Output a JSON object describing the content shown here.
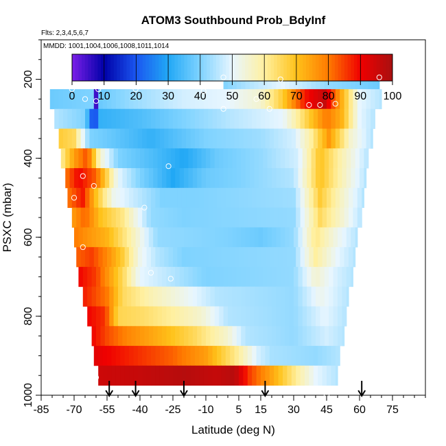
{
  "chart_data": {
    "type": "heatmap",
    "title": "ATOM3 Southbound Prob_BdyInf",
    "subtitle_flights": "Flts: 2,3,4,5,6,7",
    "subtitle_dates": "MMDD: 1001,1004,1006,1008,1011,1014",
    "xlabel": "Latitude (deg N)",
    "ylabel": "PSXC (mbar)",
    "xlim": [
      -85,
      90
    ],
    "ylim": [
      1000,
      100
    ],
    "x_ticks": [
      "-85",
      "-70",
      "-55",
      "-40",
      "-25",
      "-10",
      "5",
      "15",
      "30",
      "45",
      "60",
      "75"
    ],
    "x_tick_values": [
      -85,
      -70,
      -55,
      -40,
      -25,
      -10,
      5,
      15,
      30,
      45,
      60,
      75
    ],
    "y_ticks": [
      "200",
      "400",
      "600",
      "800",
      "1000"
    ],
    "y_tick_values": [
      200,
      400,
      600,
      800,
      1000
    ],
    "colorbar": {
      "ticks": [
        "0",
        "10",
        "20",
        "30",
        "40",
        "50",
        "60",
        "70",
        "80",
        "90",
        "100"
      ],
      "range": [
        0,
        100
      ],
      "colors": [
        "#7b1fe8",
        "#0000a8",
        "#1a56f0",
        "#21a8f5",
        "#7fd3ff",
        "#e8f6ff",
        "#fff0a0",
        "#ffc21a",
        "#ff7a00",
        "#f00000",
        "#a81010"
      ]
    },
    "layers": [
      {
        "p": 200,
        "lat_min": -2,
        "lat_max": 69,
        "segments": [
          [
            -2,
            40
          ],
          [
            10,
            45
          ],
          [
            25,
            50
          ],
          [
            45,
            42
          ],
          [
            69,
            38
          ]
        ]
      },
      {
        "p": 250,
        "lat_min": -81,
        "lat_max": 70,
        "segments": [
          [
            -81,
            38
          ],
          [
            -62,
            40
          ],
          [
            -60,
            5
          ],
          [
            -58,
            38
          ],
          [
            -45,
            42
          ],
          [
            -20,
            48
          ],
          [
            0,
            50
          ],
          [
            15,
            55
          ],
          [
            25,
            68
          ],
          [
            35,
            88
          ],
          [
            44,
            96
          ],
          [
            50,
            78
          ],
          [
            60,
            50
          ],
          [
            70,
            45
          ]
        ]
      },
      {
        "p": 300,
        "lat_min": -79,
        "lat_max": 67,
        "segments": [
          [
            -79,
            45
          ],
          [
            -65,
            40
          ],
          [
            -61,
            15
          ],
          [
            -58,
            32
          ],
          [
            -40,
            35
          ],
          [
            -20,
            40
          ],
          [
            0,
            45
          ],
          [
            25,
            50
          ],
          [
            35,
            65
          ],
          [
            45,
            80
          ],
          [
            52,
            72
          ],
          [
            60,
            50
          ],
          [
            67,
            45
          ]
        ]
      },
      {
        "p": 350,
        "lat_min": -77,
        "lat_max": 66,
        "segments": [
          [
            -77,
            68
          ],
          [
            -70,
            65
          ],
          [
            -63,
            40
          ],
          [
            -55,
            38
          ],
          [
            -35,
            32
          ],
          [
            -10,
            40
          ],
          [
            15,
            43
          ],
          [
            30,
            48
          ],
          [
            38,
            60
          ],
          [
            46,
            76
          ],
          [
            56,
            55
          ],
          [
            66,
            45
          ]
        ]
      },
      {
        "p": 400,
        "lat_min": -76,
        "lat_max": 64,
        "segments": [
          [
            -76,
            60
          ],
          [
            -70,
            75
          ],
          [
            -64,
            84
          ],
          [
            -58,
            55
          ],
          [
            -50,
            40
          ],
          [
            -35,
            35
          ],
          [
            -20,
            30
          ],
          [
            -5,
            38
          ],
          [
            15,
            42
          ],
          [
            32,
            48
          ],
          [
            42,
            70
          ],
          [
            52,
            58
          ],
          [
            64,
            45
          ]
        ]
      },
      {
        "p": 450,
        "lat_min": -74,
        "lat_max": 63,
        "segments": [
          [
            -74,
            80
          ],
          [
            -68,
            90
          ],
          [
            -60,
            82
          ],
          [
            -50,
            50
          ],
          [
            -40,
            40
          ],
          [
            -25,
            30
          ],
          [
            -10,
            38
          ],
          [
            5,
            40
          ],
          [
            30,
            45
          ],
          [
            42,
            70
          ],
          [
            50,
            60
          ],
          [
            63,
            45
          ]
        ]
      },
      {
        "p": 500,
        "lat_min": -73,
        "lat_max": 62,
        "segments": [
          [
            -73,
            80
          ],
          [
            -66,
            88
          ],
          [
            -60,
            70
          ],
          [
            -52,
            52
          ],
          [
            -45,
            48
          ],
          [
            -30,
            40
          ],
          [
            -15,
            40
          ],
          [
            30,
            43
          ],
          [
            42,
            68
          ],
          [
            50,
            58
          ],
          [
            62,
            45
          ]
        ]
      },
      {
        "p": 550,
        "lat_min": -71,
        "lat_max": 61,
        "segments": [
          [
            -71,
            75
          ],
          [
            -65,
            82
          ],
          [
            -58,
            70
          ],
          [
            -48,
            62
          ],
          [
            -35,
            42
          ],
          [
            -20,
            40
          ],
          [
            30,
            42
          ],
          [
            42,
            65
          ],
          [
            52,
            55
          ],
          [
            61,
            45
          ]
        ]
      },
      {
        "p": 600,
        "lat_min": -70,
        "lat_max": 59,
        "segments": [
          [
            -70,
            80
          ],
          [
            -63,
            76
          ],
          [
            -55,
            72
          ],
          [
            -45,
            60
          ],
          [
            -38,
            50
          ],
          [
            -32,
            42
          ],
          [
            0,
            40
          ],
          [
            15,
            38
          ],
          [
            30,
            42
          ],
          [
            40,
            62
          ],
          [
            50,
            52
          ],
          [
            59,
            45
          ]
        ]
      },
      {
        "p": 650,
        "lat_min": -69,
        "lat_max": 58,
        "segments": [
          [
            -69,
            82
          ],
          [
            -62,
            85
          ],
          [
            -55,
            78
          ],
          [
            -48,
            68
          ],
          [
            -40,
            52
          ],
          [
            -32,
            45
          ],
          [
            -20,
            40
          ],
          [
            30,
            42
          ],
          [
            40,
            60
          ],
          [
            50,
            50
          ],
          [
            58,
            45
          ]
        ]
      },
      {
        "p": 700,
        "lat_min": -68,
        "lat_max": 57,
        "segments": [
          [
            -68,
            90
          ],
          [
            -60,
            85
          ],
          [
            -52,
            72
          ],
          [
            -46,
            62
          ],
          [
            -40,
            50
          ],
          [
            -25,
            45
          ],
          [
            -10,
            40
          ],
          [
            30,
            42
          ],
          [
            40,
            55
          ],
          [
            50,
            48
          ],
          [
            57,
            45
          ]
        ]
      },
      {
        "p": 750,
        "lat_min": -66,
        "lat_max": 55,
        "segments": [
          [
            -66,
            88
          ],
          [
            -55,
            80
          ],
          [
            -48,
            65
          ],
          [
            -35,
            58
          ],
          [
            -20,
            52
          ],
          [
            -5,
            45
          ],
          [
            30,
            42
          ],
          [
            42,
            52
          ],
          [
            55,
            45
          ]
        ]
      },
      {
        "p": 800,
        "lat_min": -64,
        "lat_max": 54,
        "segments": [
          [
            -64,
            90
          ],
          [
            -56,
            86
          ],
          [
            -50,
            66
          ],
          [
            -38,
            64
          ],
          [
            -25,
            60
          ],
          [
            -12,
            55
          ],
          [
            0,
            45
          ],
          [
            30,
            42
          ],
          [
            44,
            50
          ],
          [
            54,
            45
          ]
        ]
      },
      {
        "p": 850,
        "lat_min": -62,
        "lat_max": 53,
        "segments": [
          [
            -62,
            90
          ],
          [
            -55,
            84
          ],
          [
            -45,
            78
          ],
          [
            -30,
            72
          ],
          [
            -15,
            65
          ],
          [
            0,
            55
          ],
          [
            8,
            45
          ],
          [
            30,
            42
          ],
          [
            45,
            48
          ],
          [
            53,
            45
          ]
        ]
      },
      {
        "p": 900,
        "lat_min": -61,
        "lat_max": 51,
        "segments": [
          [
            -61,
            92
          ],
          [
            -55,
            90
          ],
          [
            -40,
            86
          ],
          [
            -25,
            82
          ],
          [
            -10,
            75
          ],
          [
            5,
            60
          ],
          [
            14,
            48
          ],
          [
            20,
            44
          ],
          [
            40,
            42
          ],
          [
            51,
            45
          ]
        ]
      },
      {
        "p": 950,
        "lat_min": -59,
        "lat_max": 50,
        "segments": [
          [
            -59,
            95
          ],
          [
            -40,
            96
          ],
          [
            -20,
            98
          ],
          [
            -5,
            96
          ],
          [
            3,
            98
          ],
          [
            10,
            85
          ],
          [
            20,
            74
          ],
          [
            30,
            62
          ],
          [
            40,
            50
          ],
          [
            50,
            45
          ]
        ]
      }
    ],
    "markers": [
      [
        -83,
        225
      ],
      [
        -71,
        225
      ],
      [
        -59,
        225
      ],
      [
        -42,
        225
      ],
      [
        -65,
        250
      ],
      [
        -60,
        255
      ],
      [
        -2,
        195
      ],
      [
        -11,
        230
      ],
      [
        -2,
        275
      ],
      [
        13,
        250
      ],
      [
        19,
        275
      ],
      [
        37,
        265
      ],
      [
        42,
        265
      ],
      [
        49,
        262
      ],
      [
        69,
        195
      ],
      [
        24,
        200
      ],
      [
        -27,
        420
      ],
      [
        -66,
        445
      ],
      [
        -61,
        470
      ],
      [
        -70,
        500
      ],
      [
        -38,
        525
      ],
      [
        -66,
        625
      ],
      [
        -35,
        690
      ],
      [
        -26,
        705
      ],
      [
        -60,
        955
      ],
      [
        4,
        990
      ],
      [
        45,
        1000
      ]
    ],
    "arrows": [
      -54,
      -42,
      -20,
      17,
      61
    ]
  }
}
